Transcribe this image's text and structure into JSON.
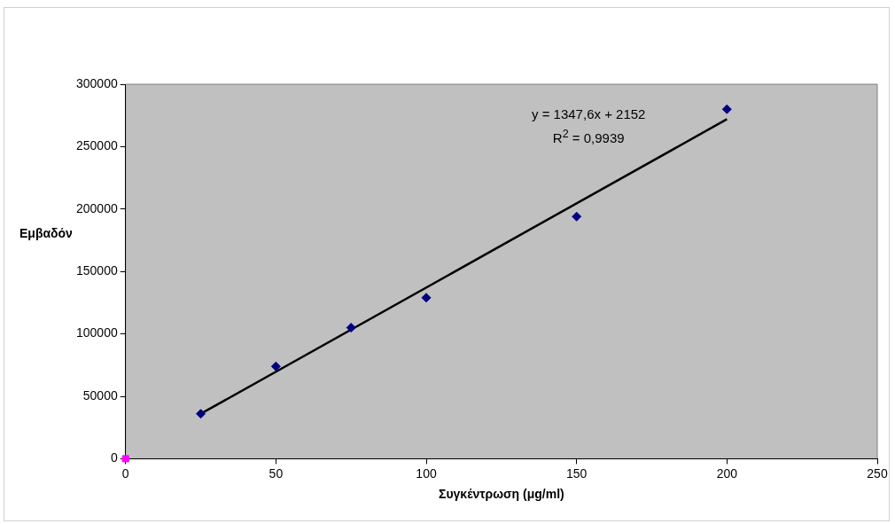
{
  "chart_data": {
    "type": "scatter",
    "xlabel": "Συγκέντρωση (μg/ml)",
    "ylabel": "Εμβαδόν",
    "series": [
      {
        "type": "scatter",
        "color": "#000080",
        "marker": "diamond",
        "x": [
          25,
          50,
          75,
          100,
          150,
          200
        ],
        "values": [
          36000,
          74000,
          105000,
          129000,
          194000,
          280000
        ]
      },
      {
        "type": "scatter",
        "color": "#ff00ff",
        "marker": "square",
        "x": [
          0
        ],
        "values": [
          0
        ]
      },
      {
        "type": "line",
        "color": "#000000",
        "marker": "none",
        "x": [
          25,
          200
        ],
        "values": [
          36000,
          272000
        ]
      }
    ],
    "xlim": [
      0,
      250
    ],
    "xticks": [
      0,
      50,
      100,
      150,
      200,
      250
    ],
    "ylim": [
      0,
      300000
    ],
    "yticks": [
      0,
      50000,
      100000,
      150000,
      200000,
      250000,
      300000
    ],
    "grid": false,
    "legend": false,
    "annotations": [
      "y = 1347,6x + 2152",
      "R$^{2}$ = 0,9939"
    ]
  }
}
